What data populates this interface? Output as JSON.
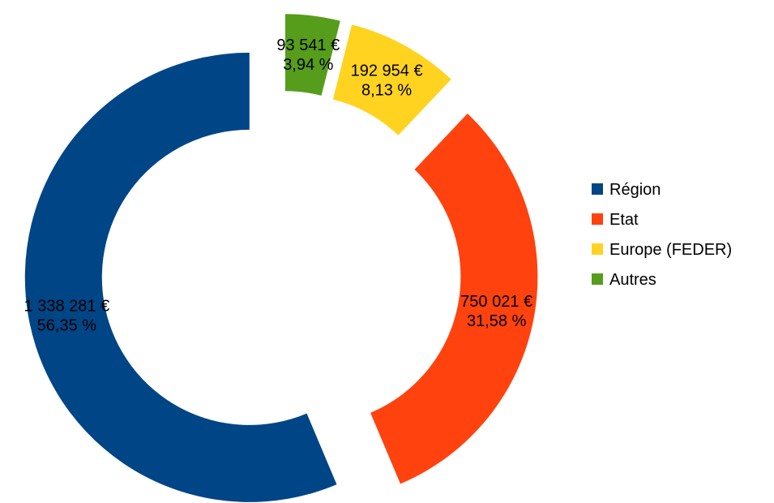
{
  "chart_data": {
    "type": "donut",
    "categories": [
      "Région",
      "Etat",
      "Europe (FEDER)",
      "Autres"
    ],
    "series": [
      {
        "colors": [
          "#004586",
          "#ff420e",
          "#ffd320",
          "#579d1c"
        ],
        "values": [
          1338281,
          750021,
          192954,
          93541
        ],
        "value_labels": [
          "1 338 281 €",
          "750 021 €",
          "192 954 €",
          "93 541 €"
        ],
        "percent_labels": [
          "56,35 %",
          "31,58 %",
          "8,13 %",
          "3,94 %"
        ]
      }
    ],
    "legend": "right"
  }
}
